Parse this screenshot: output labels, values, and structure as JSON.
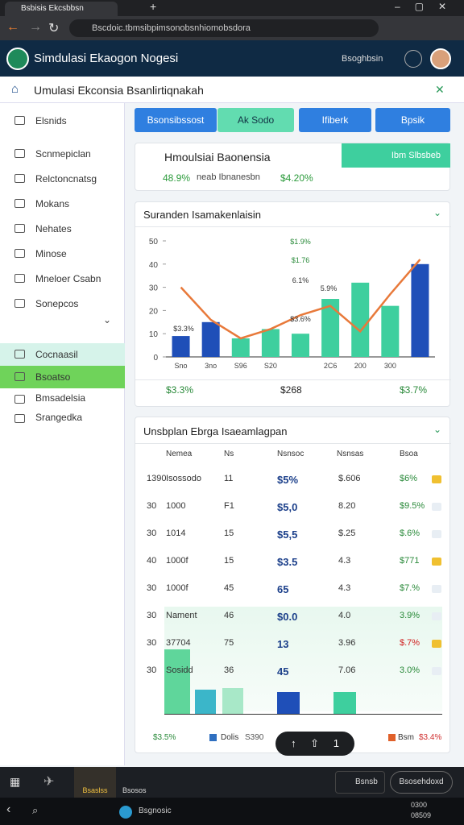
{
  "browser": {
    "tab_title": "Bsbisis Ekcsbbsn",
    "address": "Bscdoic.tbmsibpimsonobsnhiomobsdora"
  },
  "header": {
    "title": "Simdulasi Ekaogon Nogesi",
    "user": "Bsoghbsin"
  },
  "subheader": {
    "title": "Umulasi Ekconsia Bsanlirtiqnakah"
  },
  "sidebar": {
    "items": [
      "Elsnids",
      "Scnmepiclan",
      "Relctoncnatsg",
      "Mokans",
      "Nehates",
      "Minose",
      "Mneloer Csabn",
      "Sonepcos"
    ],
    "lower_items": [
      "Cocnaasil",
      "Bsoatso",
      "Bmsadelsia",
      "Srangedka"
    ]
  },
  "buttons": [
    "Bsonsibssost",
    "Ak Sodo",
    "Ifiberk",
    "Bpsik"
  ],
  "summary": {
    "title": "Hmoulsiai Baonensia",
    "tab": "Ibm Slbsbeb",
    "stat1": "48.9%",
    "stat2": "neab Ibnanesbn",
    "stat3": "$4.20%"
  },
  "chart_data": {
    "type": "bar",
    "title": "Suranden Isamakenlaisin",
    "categories": [
      "Sno",
      "3no",
      "S96",
      "S20",
      null,
      "2C6",
      "200",
      "300",
      null
    ],
    "series": [
      {
        "name": "Blue",
        "color": "#1f4fb8",
        "values": [
          9,
          15,
          null,
          null,
          9,
          null,
          null,
          null,
          40
        ]
      },
      {
        "name": "Teal",
        "color": "#3ecf9e",
        "values": [
          null,
          null,
          8,
          12,
          10,
          25,
          32,
          22,
          null
        ]
      },
      {
        "name": "Trend",
        "color": "#e8793a",
        "type": "line",
        "values": [
          30,
          16,
          8,
          12,
          18,
          22,
          11,
          27,
          42
        ]
      }
    ],
    "ylim": [
      0,
      50
    ],
    "yticks": [
      0,
      10,
      20,
      30,
      40,
      50
    ],
    "annotations": [
      "$1.9%",
      "$1.76",
      "6.1%",
      "5.9%",
      "$3.6%",
      "$3.3%"
    ],
    "footer": [
      "$3.3%",
      "$268",
      "$3.7%"
    ]
  },
  "table": {
    "title": "Unsbplan Ebrga Isaeamlagpan",
    "columns": [
      "Nemea",
      "Ns",
      "Nsnsoc",
      "Nsnsas",
      "Bsoa"
    ],
    "rows": [
      [
        "1390",
        "Isossodo",
        "11",
        "$5%",
        "$.606",
        "$6%"
      ],
      [
        "30",
        "1000",
        "F1",
        "$5,0",
        "8.20",
        "$9.5%"
      ],
      [
        "30",
        "1014",
        "15",
        "$5,5",
        "$.25",
        "$.6%"
      ],
      [
        "40",
        "1000f",
        "15",
        "$3.5",
        "4.3",
        "$771"
      ],
      [
        "30",
        "1000f",
        "45",
        "65",
        "4.3",
        "$7.%"
      ],
      [
        "30",
        "Nament",
        "46",
        "$0.0",
        "4.0",
        "3.9%"
      ],
      [
        "30",
        "37704",
        "75",
        "13",
        "3.96",
        "$.7%"
      ],
      [
        "30",
        "Sosidd",
        "36",
        "45",
        "7.06",
        "3.0%"
      ]
    ],
    "legend": [
      "$3.5%",
      "Dolis",
      "S390",
      "Bsm",
      "$3.4%"
    ],
    "pager": "1"
  },
  "dock": [
    "Bsaslss",
    "Bsosos",
    "Bsnsb",
    "Bsosehdoxd"
  ],
  "taskbar": {
    "app": "Bsgnosic",
    "time": "0300",
    "date": "08509"
  }
}
